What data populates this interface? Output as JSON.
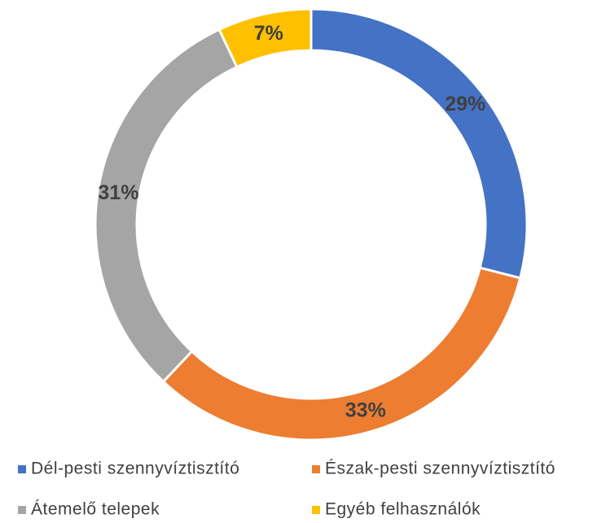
{
  "chart_data": {
    "type": "donut",
    "categories": [
      "Dél-pesti szennyvíztisztító",
      "Észak-pesti szennyvíztisztító",
      "Átemelő telepek",
      "Egyéb felhasználók"
    ],
    "values": [
      29,
      33,
      31,
      7
    ],
    "value_labels": [
      "29%",
      "33%",
      "31%",
      "7%"
    ],
    "colors": [
      "#4472c4",
      "#ed7d31",
      "#a5a5a5",
      "#ffc000"
    ],
    "legend": "bottom"
  }
}
